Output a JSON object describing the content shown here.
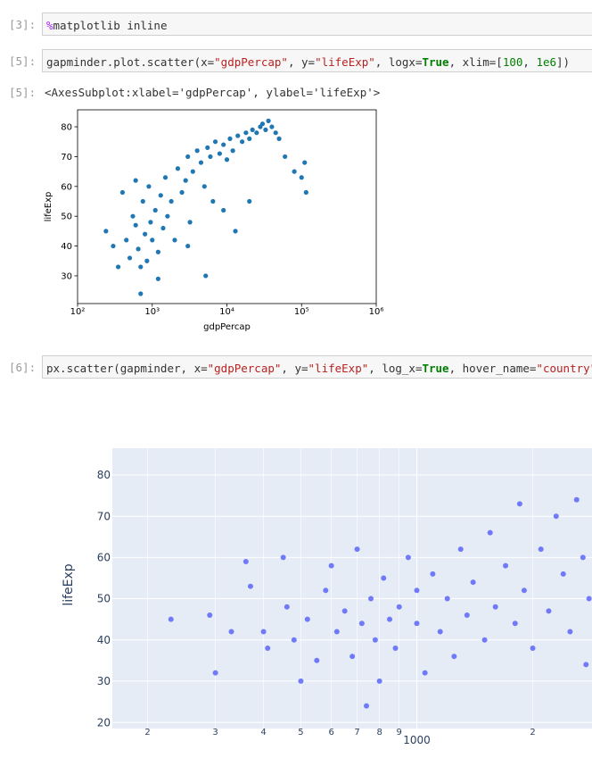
{
  "cells": [
    {
      "prompt": "[3]:",
      "tokens": [
        {
          "text": "%",
          "color": "#aa22ff"
        },
        {
          "text": "matplotlib inline",
          "color": "#333333"
        }
      ]
    },
    {
      "prompt": "[5]:",
      "tokens": [
        {
          "text": "gapminder.plot.scatter(x=",
          "color": "#333333"
        },
        {
          "text": "\"gdpPercap\"",
          "color": "#ba2121"
        },
        {
          "text": ", y=",
          "color": "#333333"
        },
        {
          "text": "\"lifeExp\"",
          "color": "#ba2121"
        },
        {
          "text": ", logx=",
          "color": "#333333"
        },
        {
          "text": "True",
          "color": "#008000"
        },
        {
          "text": ", xlim=[",
          "color": "#333333"
        },
        {
          "text": "100",
          "color": "#008000"
        },
        {
          "text": ", ",
          "color": "#333333"
        },
        {
          "text": "1e6",
          "color": "#008000"
        },
        {
          "text": "])",
          "color": "#333333"
        }
      ]
    },
    {
      "prompt": "[6]:",
      "tokens": [
        {
          "text": "px.scatter(gapminder, x=",
          "color": "#333333"
        },
        {
          "text": "\"gdpPercap\"",
          "color": "#ba2121"
        },
        {
          "text": ", y=",
          "color": "#333333"
        },
        {
          "text": "\"lifeExp\"",
          "color": "#ba2121"
        },
        {
          "text": ", log_x=",
          "color": "#333333"
        },
        {
          "text": "True",
          "color": "#008000"
        },
        {
          "text": ", hover_name=",
          "color": "#333333"
        },
        {
          "text": "\"country\"",
          "color": "#ba2121"
        },
        {
          "text": ")",
          "color": "#333333"
        }
      ]
    }
  ],
  "output": {
    "prompt": "[5]:",
    "text": "<AxesSubplot:xlabel='gdpPercap', ylabel='lifeExp'>"
  },
  "chart_data": [
    {
      "type": "scatter",
      "style": "matplotlib",
      "xscale": "log",
      "color": "#1f77b4",
      "xlabel": "gdpPercap",
      "ylabel": "lifeExp",
      "xlim": [
        100,
        1000000
      ],
      "ylim": [
        20.7,
        85.7
      ],
      "xticks": [
        {
          "value": 100,
          "label": "10²"
        },
        {
          "value": 1000,
          "label": "10³"
        },
        {
          "value": 10000,
          "label": "10⁴"
        },
        {
          "value": 100000,
          "label": "10⁵"
        },
        {
          "value": 1000000,
          "label": "10⁶"
        }
      ],
      "yticks": [
        30,
        40,
        50,
        60,
        70,
        80
      ],
      "grid": false,
      "x": [
        240,
        300,
        350,
        400,
        450,
        500,
        550,
        600,
        650,
        700,
        750,
        800,
        850,
        900,
        950,
        1000,
        1100,
        1200,
        1300,
        1400,
        1500,
        1600,
        1800,
        2000,
        2200,
        2500,
        2800,
        3000,
        3200,
        3500,
        4000,
        4500,
        5000,
        5500,
        6000,
        6500,
        7000,
        8000,
        9000,
        10000,
        11000,
        12000,
        14000,
        16000,
        18000,
        20000,
        22000,
        25000,
        28000,
        30000,
        33000,
        36000,
        40000,
        45000,
        50000,
        60000,
        80000,
        100000,
        110000,
        115000,
        700,
        1200,
        5200,
        13000,
        20000,
        9000,
        3000,
        600
      ],
      "values": [
        45,
        40,
        33,
        58,
        42,
        36,
        50,
        47,
        39,
        24,
        55,
        44,
        35,
        60,
        48,
        42,
        52,
        38,
        57,
        46,
        63,
        50,
        55,
        42,
        66,
        58,
        62,
        70,
        48,
        65,
        72,
        68,
        60,
        73,
        70,
        55,
        75,
        71,
        74,
        69,
        76,
        72,
        77,
        75,
        78,
        76,
        79,
        78,
        80,
        81,
        79,
        82,
        80,
        78,
        76,
        70,
        65,
        63,
        68,
        58,
        33,
        29,
        30,
        45,
        55,
        52,
        40,
        62
      ]
    },
    {
      "type": "scatter",
      "style": "plotly",
      "xscale": "log",
      "color": "#636efa",
      "ylabel": "lifeExp",
      "xlim": [
        162,
        2850
      ],
      "ylim": [
        18.5,
        86.5
      ],
      "xticks": [
        {
          "value": 200,
          "label": "2"
        },
        {
          "value": 300,
          "label": "3"
        },
        {
          "value": 400,
          "label": "4"
        },
        {
          "value": 500,
          "label": "5"
        },
        {
          "value": 600,
          "label": "6"
        },
        {
          "value": 700,
          "label": "7"
        },
        {
          "value": 800,
          "label": "8"
        },
        {
          "value": 900,
          "label": "9"
        },
        1000,
        {
          "value": 2000,
          "label": "2"
        }
      ],
      "yticks": [
        20,
        30,
        40,
        50,
        60,
        70,
        80
      ],
      "grid": true,
      "x": [
        230,
        290,
        300,
        330,
        360,
        370,
        400,
        410,
        450,
        460,
        480,
        500,
        520,
        550,
        580,
        600,
        620,
        650,
        680,
        700,
        720,
        740,
        760,
        780,
        800,
        820,
        850,
        880,
        900,
        950,
        1000,
        1000,
        1050,
        1100,
        1150,
        1200,
        1250,
        1300,
        1350,
        1400,
        1500,
        1550,
        1600,
        1700,
        1800,
        1850,
        1900,
        2000,
        2100,
        2200,
        2300,
        2400,
        2500,
        2600,
        2700,
        2800,
        2750
      ],
      "values": [
        45,
        46,
        32,
        42,
        59,
        53,
        42,
        38,
        60,
        48,
        40,
        30,
        45,
        35,
        52,
        58,
        42,
        47,
        36,
        62,
        44,
        24,
        50,
        40,
        30,
        55,
        45,
        38,
        48,
        60,
        52,
        44,
        32,
        56,
        42,
        50,
        36,
        62,
        46,
        54,
        40,
        66,
        48,
        58,
        44,
        73,
        52,
        38,
        62,
        47,
        70,
        56,
        42,
        74,
        60,
        50,
        34
      ]
    }
  ]
}
